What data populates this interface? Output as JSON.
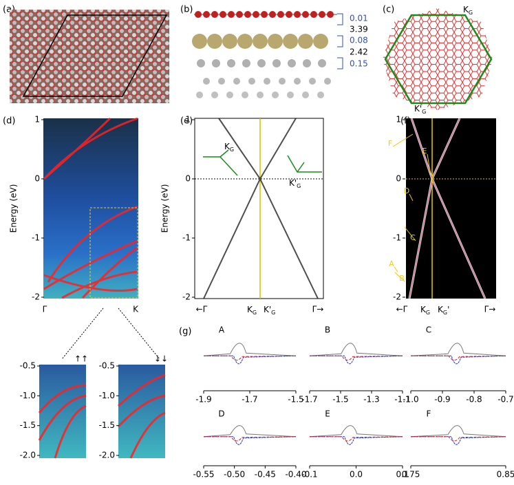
{
  "panels": {
    "a": {
      "label": "(a)"
    },
    "b": {
      "label": "(b)",
      "distances": [
        "0.01",
        "3.39",
        "0.08",
        "2.42",
        "0.15"
      ]
    },
    "c": {
      "label": "(c)",
      "k": "K",
      "k_sub": "G",
      "kp": "K'",
      "kp_sub": "G"
    },
    "d": {
      "label": "(d)",
      "y_title": "Energy (eV)",
      "yticks": [
        "1",
        "0",
        "-1",
        "-2"
      ],
      "xticks": [
        "Γ",
        "K"
      ],
      "insets": [
        {
          "yticks": [
            "-0.5",
            "-1.0",
            "-1.5",
            "-2.0"
          ],
          "spin": "↑↑"
        },
        {
          "yticks": [
            "-0.5",
            "-1.0",
            "-1.5",
            "-2.0"
          ],
          "spin": "↓↓"
        }
      ]
    },
    "e": {
      "label": "(e)",
      "y_title": "Energy (eV)",
      "yticks": [
        "1",
        "0",
        "-1",
        "-2"
      ],
      "x_left": "←Γ",
      "x_right": "Γ→",
      "kg": "K",
      "kg_sub": "G",
      "kpg": "K'",
      "kpg_sub": "G",
      "inset_left": {
        "k": "K",
        "k_sub": "G"
      },
      "inset_right": {
        "k": "K'",
        "k_sub": "G"
      }
    },
    "f": {
      "label": "(f)",
      "yticks": [
        "1",
        "0",
        "-1",
        "-2"
      ],
      "x_left": "←Γ",
      "x_right": "Γ→",
      "kg": "K",
      "kg_sub": "G",
      "kpg": "K",
      "kpg_sub": "G",
      "kpg_prime": "'",
      "markers": [
        "F",
        "E",
        "D",
        "C",
        "A",
        "B"
      ]
    },
    "g": {
      "label": "(g)",
      "subplots": [
        {
          "name": "A",
          "xticks": [
            "-1.9",
            "-1.7",
            "-1.5"
          ]
        },
        {
          "name": "B",
          "xticks": [
            "-1.7",
            "-1.5",
            "-1.3",
            "-1.1"
          ]
        },
        {
          "name": "C",
          "xticks": [
            "-1.0",
            "-0.9",
            "-0.8",
            "-0.7"
          ]
        },
        {
          "name": "D",
          "xticks": [
            "-0.55",
            "-0.50",
            "-0.45",
            "-0.40"
          ]
        },
        {
          "name": "E",
          "xticks": [
            "-0.1",
            "0.0",
            "0.1"
          ]
        },
        {
          "name": "F",
          "xticks": [
            "0.75",
            "0.85"
          ]
        }
      ]
    }
  }
}
